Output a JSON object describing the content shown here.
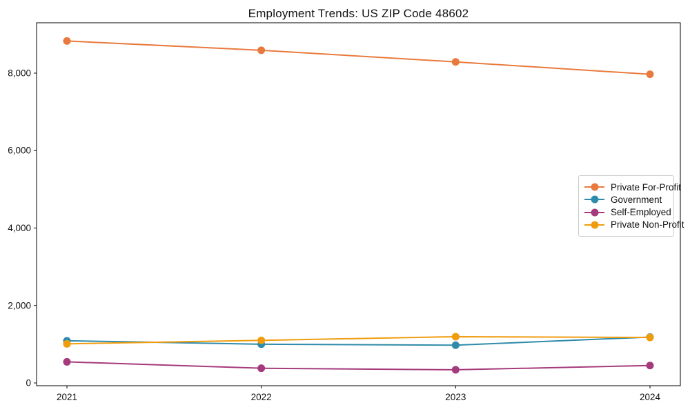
{
  "chart_data": {
    "type": "line",
    "title": "Employment Trends: US ZIP Code 48602",
    "x": [
      2021,
      2022,
      2023,
      2024
    ],
    "x_tick_labels": [
      "2021",
      "2022",
      "2023",
      "2024"
    ],
    "y_ticks": [
      0,
      2000,
      4000,
      6000,
      8000
    ],
    "y_tick_labels": [
      "0",
      "2,000",
      "4,000",
      "6,000",
      "8,000"
    ],
    "ylim": [
      -71,
      9300
    ],
    "grid": false,
    "legend_position": "center-right",
    "marker": "circle",
    "series": [
      {
        "name": "Private For-Profit",
        "color": "#e87a3d",
        "values": [
          8830,
          8590,
          8290,
          7970
        ]
      },
      {
        "name": "Government",
        "color": "#2f8bab",
        "values": [
          1090,
          1000,
          975,
          1185
        ]
      },
      {
        "name": "Self-Employed",
        "color": "#a53a7d",
        "values": [
          545,
          380,
          340,
          450
        ]
      },
      {
        "name": "Private Non-Profit",
        "color": "#f09c0d",
        "values": [
          1010,
          1100,
          1195,
          1175
        ]
      }
    ]
  }
}
